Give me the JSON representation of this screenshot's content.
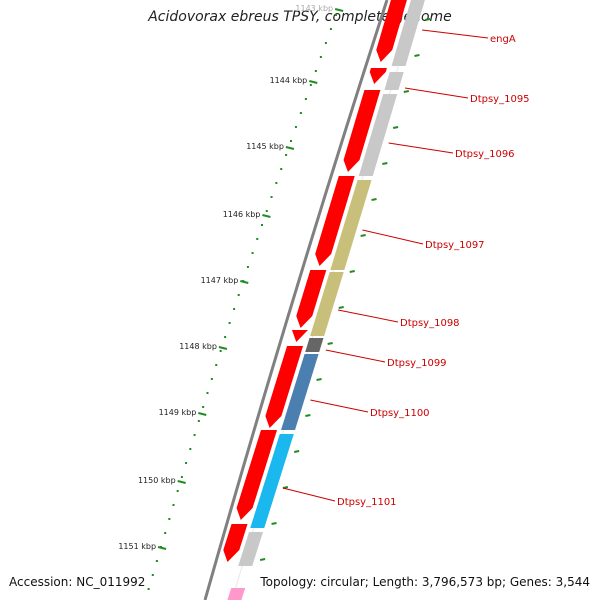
{
  "title": "Acidovorax ebreus TPSY, complete genome",
  "footer": {
    "accession": "Accession: NC_011992",
    "stats": "Topology: circular; Length: 3,796,573 bp; Genes: 3,544"
  },
  "scale_labels": [
    "1143 kbp",
    "1144 kbp",
    "1145 kbp",
    "1146 kbp",
    "1147 kbp",
    "1148 kbp",
    "1149 kbp",
    "1150 kbp",
    "1151 kbp"
  ],
  "genes": [
    {
      "label": "engA"
    },
    {
      "label": "Dtpsy_1095"
    },
    {
      "label": "Dtpsy_1096"
    },
    {
      "label": "Dtpsy_1097"
    },
    {
      "label": "Dtpsy_1098"
    },
    {
      "label": "Dtpsy_1099"
    },
    {
      "label": "Dtpsy_1100"
    },
    {
      "label": "Dtpsy_1101"
    }
  ],
  "colors": {
    "cds": "#ff0000",
    "label": "#cc0000",
    "backbone": "#808080",
    "scale_ticks": "#228b22",
    "feature_gray": "#c8c8c8",
    "feature_olive": "#c8c07a",
    "feature_dark": "#666666",
    "feature_steel": "#4a7fb0",
    "feature_cyan": "#1ab8ee",
    "feature_pink": "#ff99cc"
  }
}
